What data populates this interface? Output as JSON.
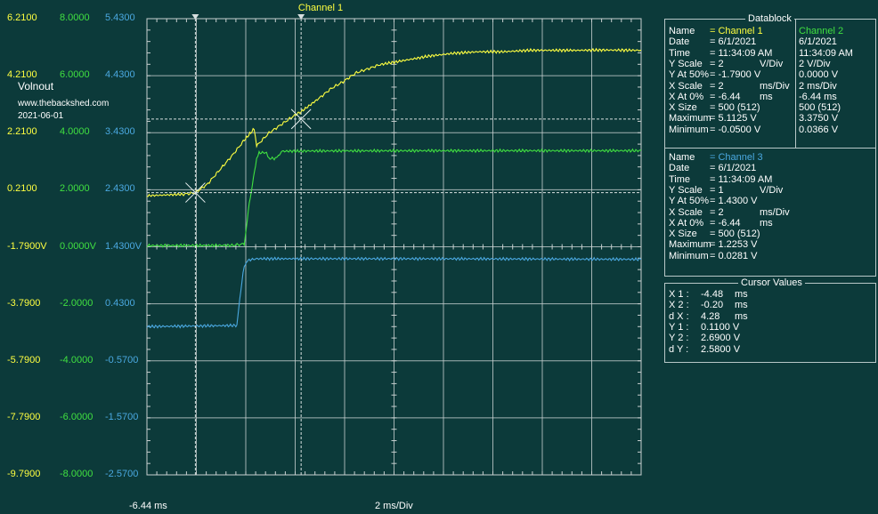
{
  "title": "Channel 1",
  "overlay": {
    "name": "Volnout",
    "site": "www.thebackshed.com",
    "date": "2021-06-01"
  },
  "colors": {
    "ch1": "#ffff40",
    "ch2": "#40e040",
    "ch3": "#4aa8e0",
    "grid": "#c8d0d0",
    "bg": "#0c3a3a"
  },
  "y_axis_ch1": [
    "6.2100",
    "4.2100",
    "2.2100",
    "0.2100",
    "-1.7900V",
    "-3.7900",
    "-5.7900",
    "-7.7900",
    "-9.7900"
  ],
  "y_axis_ch2": [
    "8.0000",
    "6.0000",
    "4.0000",
    "2.0000",
    "0.0000V",
    "-2.0000",
    "-4.0000",
    "-6.0000",
    "-8.0000"
  ],
  "y_axis_ch3": [
    "5.4300",
    "4.4300",
    "3.4300",
    "2.4300",
    "1.4300V",
    "0.4300",
    "-0.5700",
    "-1.5700",
    "-2.5700"
  ],
  "x_axis": {
    "start": "-6.44 ms",
    "scale": "2 ms/Div"
  },
  "datablock": {
    "title": "Datablock",
    "ch1": {
      "rows": [
        [
          "Name",
          "= Channel 1",
          ""
        ],
        [
          "Date",
          "= 6/1/2021",
          ""
        ],
        [
          "Time",
          "= 11:34:09 AM",
          ""
        ],
        [
          "Y Scale",
          "=      2",
          "V/Div"
        ],
        [
          "Y At 50%",
          "=  -1.7900 V",
          ""
        ],
        [
          "X Scale",
          "=      2",
          "ms/Div"
        ],
        [
          "X At 0%",
          "=   -6.44",
          "ms"
        ],
        [
          "X Size",
          "=  500 (512)",
          ""
        ],
        [
          "Maximum",
          "=    5.1125 V",
          ""
        ],
        [
          "Minimum",
          "=   -0.0500 V",
          ""
        ]
      ]
    },
    "ch2": {
      "values": [
        "Channel 2",
        "6/1/2021",
        "11:34:09 AM",
        "2          V/Div",
        "0.0000 V",
        "2          ms/Div",
        "-6.44      ms",
        "500 (512)",
        "3.3750 V",
        "0.0366 V"
      ]
    },
    "ch3": {
      "rows": [
        [
          "Name",
          "= Channel 3",
          ""
        ],
        [
          "Date",
          "= 6/1/2021",
          ""
        ],
        [
          "Time",
          "= 11:34:09 AM",
          ""
        ],
        [
          "Y Scale",
          "=      1",
          "V/Div"
        ],
        [
          "Y At 50%",
          "=    1.4300 V",
          ""
        ],
        [
          "X Scale",
          "=      2",
          "ms/Div"
        ],
        [
          "X At 0%",
          "=   -6.44",
          "ms"
        ],
        [
          "X Size",
          "=  500 (512)",
          ""
        ],
        [
          "Maximum",
          "=    1.2253 V",
          ""
        ],
        [
          "Minimum",
          "=    0.0281 V",
          ""
        ]
      ]
    }
  },
  "cursor_values": {
    "title": "Cursor Values",
    "rows": [
      [
        "X 1 :",
        "-4.48",
        "ms"
      ],
      [
        "X 2 :",
        "-0.20",
        "ms"
      ],
      [
        "d X :",
        "4.28",
        "ms"
      ],
      [
        "Y 1 :",
        "0.1100 V",
        ""
      ],
      [
        "Y 2 :",
        "2.6900 V",
        ""
      ],
      [
        "d Y :",
        "2.5800 V",
        ""
      ]
    ]
  },
  "chart_data": {
    "type": "line",
    "title": "Channel 1",
    "xlim": [
      -6.44,
      13.56
    ],
    "xlabel": "2 ms/Div",
    "series": [
      {
        "name": "Channel 1",
        "color": "#ffff40",
        "axis": "ch1 (V)",
        "x": [
          -6.44,
          -5.0,
          -4.5,
          -4.0,
          -3.5,
          -3.0,
          -2.5,
          -2.1,
          -2.0,
          -1.5,
          -1.0,
          -0.5,
          -0.2,
          0.5,
          1.0,
          1.5,
          2.0,
          2.5,
          3.0,
          4.0,
          5.0,
          6.0,
          7.0,
          8.0,
          9.0,
          10.0,
          11.0,
          12.0,
          13.56
        ],
        "y": [
          0.0,
          0.05,
          0.1,
          0.4,
          0.9,
          1.4,
          1.95,
          2.35,
          1.75,
          2.2,
          2.5,
          2.8,
          2.95,
          3.4,
          3.75,
          4.0,
          4.3,
          4.45,
          4.6,
          4.75,
          4.9,
          5.0,
          5.05,
          5.05,
          5.1,
          5.1,
          5.1,
          5.11,
          5.1
        ]
      },
      {
        "name": "Channel 2",
        "color": "#40e040",
        "axis": "ch2 (V)",
        "x": [
          -6.44,
          -3.0,
          -2.5,
          -2.3,
          -2.0,
          -1.9,
          -1.6,
          -1.5,
          -1.2,
          -1.0,
          0.0,
          5.0,
          13.56
        ],
        "y": [
          0.04,
          0.05,
          0.1,
          1.5,
          3.1,
          3.3,
          3.3,
          3.1,
          3.1,
          3.35,
          3.36,
          3.37,
          3.37
        ]
      },
      {
        "name": "Channel 3",
        "color": "#4aa8e0",
        "axis": "ch3 (V)",
        "x": [
          -6.44,
          -2.8,
          -2.6,
          -2.5,
          -2.3,
          -2.0,
          0.0,
          5.0,
          13.56
        ],
        "y": [
          0.03,
          0.05,
          0.8,
          1.1,
          1.2,
          1.22,
          1.22,
          1.22,
          1.21
        ]
      }
    ],
    "cursors": {
      "x1_ms": -4.48,
      "x2_ms": -0.2,
      "y1_V": 0.11,
      "y2_V": 2.69
    }
  }
}
